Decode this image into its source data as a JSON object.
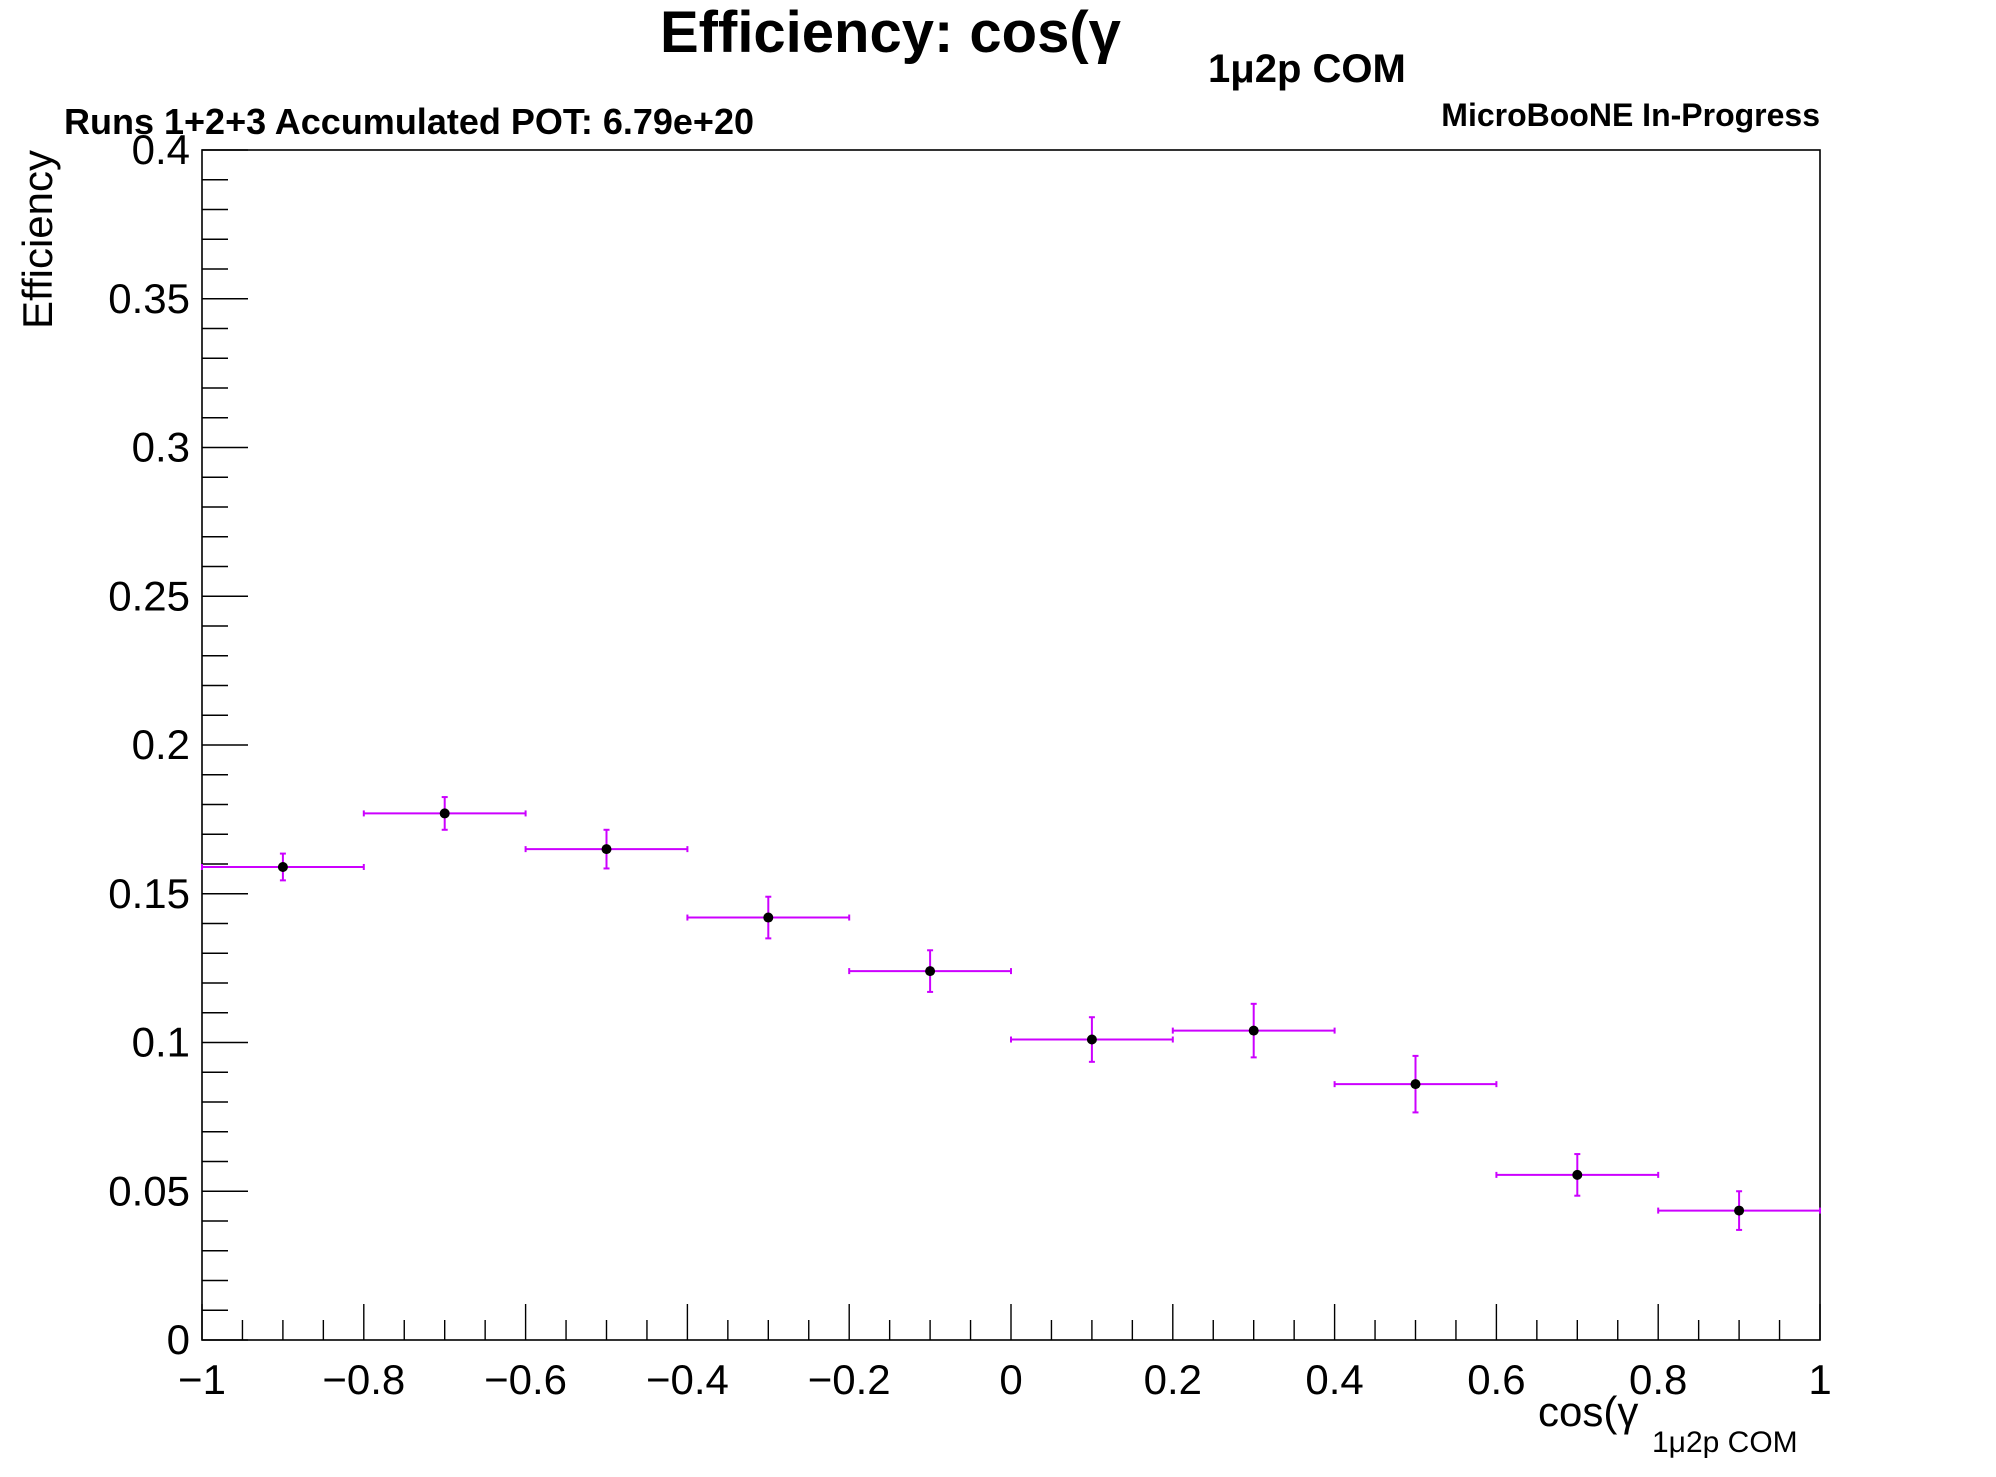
{
  "header": {
    "title_main": "Efficiency: cos(γ",
    "title_sub": "1μ2p COM",
    "info_left": "Runs 1+2+3 Accumulated POT: 6.79e+20",
    "info_right": "MicroBooNE In-Progress"
  },
  "chart_data": {
    "type": "scatter",
    "title": "Efficiency: cos(γ 1μ2p COM",
    "xlabel": "cos(γ 1μ2p COM",
    "xlabel_main": "cos(γ",
    "xlabel_sub": "1μ2p COM",
    "ylabel": "Efficiency",
    "xlim": [
      -1,
      1
    ],
    "ylim": [
      0,
      0.4
    ],
    "grid": false,
    "x_ticks": [
      -1,
      -0.8,
      -0.6,
      -0.4,
      -0.2,
      0,
      0.2,
      0.4,
      0.6,
      0.8,
      1
    ],
    "x_tick_labels": [
      "−1",
      "−0.8",
      "−0.6",
      "−0.4",
      "−0.2",
      "0",
      "0.2",
      "0.4",
      "0.6",
      "0.8",
      "1"
    ],
    "y_ticks": [
      0,
      0.05,
      0.1,
      0.15,
      0.2,
      0.25,
      0.3,
      0.35,
      0.4
    ],
    "y_tick_labels": [
      "0",
      "0.05",
      "0.1",
      "0.15",
      "0.2",
      "0.25",
      "0.3",
      "0.35",
      "0.4"
    ],
    "series": [
      {
        "marker_color": "#000000",
        "error_color": "#cc00ff",
        "points": [
          {
            "x": -0.9,
            "x_lo": -1.0,
            "x_hi": -0.8,
            "y": 0.159,
            "y_err": 0.0045
          },
          {
            "x": -0.7,
            "x_lo": -0.8,
            "x_hi": -0.6,
            "y": 0.177,
            "y_err": 0.0055
          },
          {
            "x": -0.5,
            "x_lo": -0.6,
            "x_hi": -0.4,
            "y": 0.165,
            "y_err": 0.0065
          },
          {
            "x": -0.3,
            "x_lo": -0.4,
            "x_hi": -0.2,
            "y": 0.142,
            "y_err": 0.007
          },
          {
            "x": -0.1,
            "x_lo": -0.2,
            "x_hi": 0.0,
            "y": 0.124,
            "y_err": 0.007
          },
          {
            "x": 0.1,
            "x_lo": 0.0,
            "x_hi": 0.2,
            "y": 0.101,
            "y_err": 0.0075
          },
          {
            "x": 0.3,
            "x_lo": 0.2,
            "x_hi": 0.4,
            "y": 0.104,
            "y_err": 0.009
          },
          {
            "x": 0.5,
            "x_lo": 0.4,
            "x_hi": 0.6,
            "y": 0.086,
            "y_err": 0.0095
          },
          {
            "x": 0.7,
            "x_lo": 0.6,
            "x_hi": 0.8,
            "y": 0.0555,
            "y_err": 0.007
          },
          {
            "x": 0.9,
            "x_lo": 0.8,
            "x_hi": 1.0,
            "y": 0.0435,
            "y_err": 0.0065
          }
        ]
      }
    ]
  }
}
